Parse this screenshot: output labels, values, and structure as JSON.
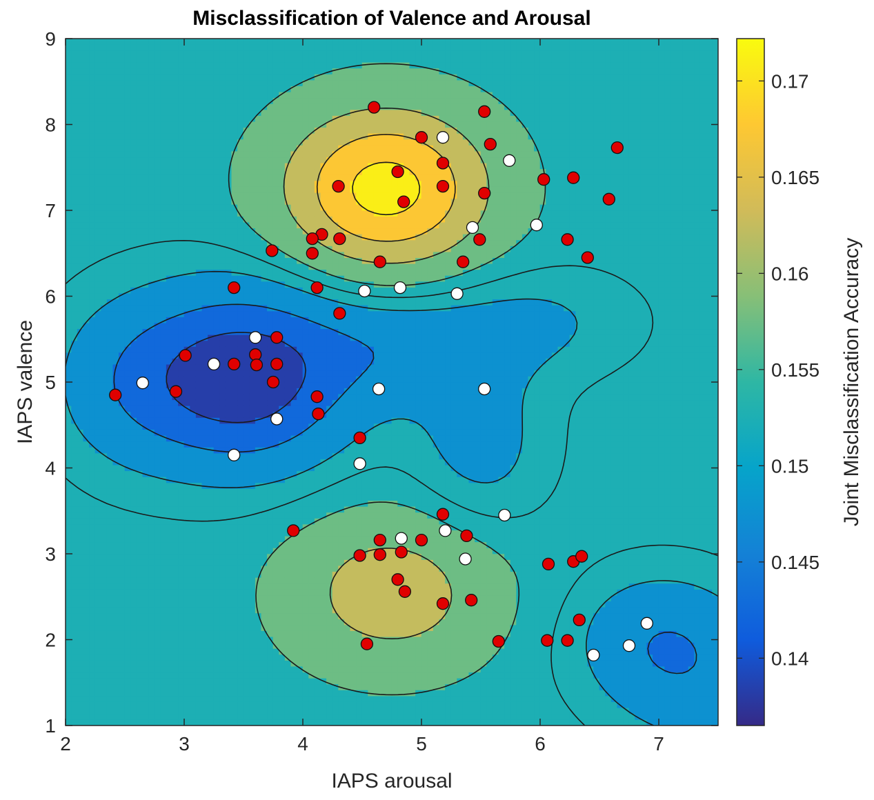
{
  "chart_data": {
    "type": "scatter",
    "title": "Misclassification of Valence and Arousal",
    "xlabel": "IAPS arousal",
    "ylabel": "IAPS valence",
    "xlim": [
      2,
      7.5
    ],
    "ylim": [
      1,
      9
    ],
    "xticks": [
      "2",
      "3",
      "4",
      "5",
      "6",
      "7"
    ],
    "yticks": [
      "1",
      "2",
      "3",
      "4",
      "5",
      "6",
      "7",
      "8",
      "9"
    ],
    "colorbar": {
      "label": "Joint Misclassification Accuracy",
      "range": [
        0.1365,
        0.1722
      ],
      "ticks": [
        "0.14",
        "0.145",
        "0.15",
        "0.155",
        "0.16",
        "0.165",
        "0.17"
      ],
      "tick_values": [
        0.14,
        0.145,
        0.15,
        0.155,
        0.16,
        0.165,
        0.17
      ],
      "colormap": "parula"
    },
    "surface": {
      "baseline": 0.1535,
      "lobes": [
        {
          "x": 4.7,
          "y": 7.25,
          "amp": 0.0185,
          "sx": 0.6,
          "sy": 0.65
        },
        {
          "x": 4.75,
          "y": 2.55,
          "amp": 0.0095,
          "sx": 0.6,
          "sy": 0.62
        },
        {
          "x": 3.5,
          "y": 5.05,
          "amp": -0.017,
          "sx": 0.62,
          "sy": 0.72
        },
        {
          "x": 4.8,
          "y": 5.4,
          "amp": -0.0055,
          "sx": 0.55,
          "sy": 0.45
        },
        {
          "x": 2.5,
          "y": 5.0,
          "amp": -0.005,
          "sx": 0.45,
          "sy": 0.7
        },
        {
          "x": 5.5,
          "y": 4.3,
          "amp": -0.005,
          "sx": 0.4,
          "sy": 0.7
        },
        {
          "x": 5.95,
          "y": 5.7,
          "amp": -0.004,
          "sx": 0.6,
          "sy": 0.45
        },
        {
          "x": 7.0,
          "y": 2.0,
          "amp": -0.007,
          "sx": 0.5,
          "sy": 0.55
        },
        {
          "x": 7.4,
          "y": 1.4,
          "amp": -0.004,
          "sx": 0.5,
          "sy": 0.6
        }
      ]
    },
    "series": [
      {
        "name": "red points",
        "color": "#e00000",
        "x": [
          4.6,
          5.53,
          5.58,
          5.0,
          5.18,
          4.8,
          6.65,
          4.3,
          5.18,
          4.85,
          5.53,
          6.03,
          6.28,
          6.58,
          4.16,
          4.08,
          4.08,
          4.31,
          5.49,
          6.23,
          3.74,
          4.65,
          5.35,
          6.4,
          3.42,
          4.12,
          4.31,
          3.01,
          3.6,
          3.78,
          3.42,
          3.61,
          3.78,
          3.75,
          2.42,
          2.93,
          4.12,
          4.13,
          4.48,
          5.18,
          3.92,
          5.38,
          4.65,
          5.0,
          4.48,
          4.65,
          4.83,
          4.8,
          4.86,
          5.18,
          5.42,
          5.65,
          4.54,
          6.07,
          6.28,
          6.35,
          6.33,
          6.06,
          6.23
        ],
        "y": [
          8.2,
          8.15,
          7.77,
          7.85,
          7.55,
          7.45,
          7.73,
          7.28,
          7.28,
          7.1,
          7.2,
          7.36,
          7.38,
          7.13,
          6.72,
          6.67,
          6.5,
          6.67,
          6.66,
          6.66,
          6.53,
          6.4,
          6.4,
          6.45,
          6.1,
          6.1,
          5.8,
          5.31,
          5.32,
          5.52,
          5.21,
          5.2,
          5.21,
          5.0,
          4.85,
          4.89,
          4.83,
          4.63,
          4.35,
          3.46,
          3.27,
          3.21,
          3.16,
          3.16,
          2.98,
          2.99,
          3.02,
          2.7,
          2.56,
          2.42,
          2.46,
          1.98,
          1.95,
          2.88,
          2.91,
          2.97,
          2.23,
          1.99,
          1.99
        ]
      },
      {
        "name": "white points",
        "color": "#ffffff",
        "x": [
          5.18,
          5.74,
          5.43,
          5.97,
          4.52,
          4.82,
          5.3,
          3.6,
          3.25,
          2.65,
          4.64,
          5.53,
          3.78,
          3.42,
          4.48,
          5.7,
          4.83,
          5.2,
          5.37,
          6.9,
          6.75,
          6.45
        ],
        "y": [
          7.85,
          7.58,
          6.8,
          6.83,
          6.06,
          6.1,
          6.03,
          5.52,
          5.21,
          4.99,
          4.92,
          4.92,
          4.57,
          4.15,
          4.05,
          3.45,
          3.18,
          3.27,
          2.94,
          2.19,
          1.93,
          1.82
        ]
      }
    ]
  }
}
